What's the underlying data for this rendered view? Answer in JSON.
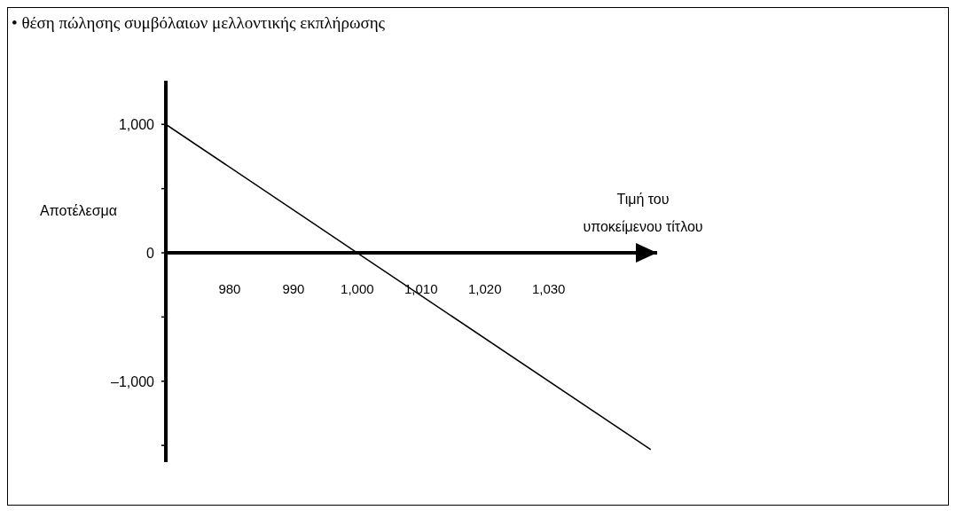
{
  "chart_data": {
    "type": "line",
    "title": "• θέση πώλησης συμβόλαιων μελλοντικής εκπλήρωσης",
    "xlabel": "Τιμή του υποκείμενου τίτλου",
    "ylabel": "Αποτέλεσμα",
    "x": [
      970,
      1000,
      1046
    ],
    "values": [
      1000,
      0,
      -1533
    ],
    "color": "#000000",
    "xlim": [
      970,
      1047
    ],
    "ylim": [
      -1630,
      1340
    ],
    "xticks": [
      980,
      990,
      {
        "value": 1000,
        "label": "1,000"
      },
      {
        "value": 1010,
        "label": "1,010"
      },
      {
        "value": 1020,
        "label": "1,020"
      },
      {
        "value": 1030,
        "label": "1,030"
      }
    ],
    "yticks": [
      {
        "value": 1000,
        "label": "1,000"
      },
      {
        "value": 500,
        "label": null
      },
      0,
      {
        "value": -500,
        "label": null
      },
      {
        "value": -1000,
        "label": "–1,000"
      },
      {
        "value": -1500,
        "label": null
      }
    ],
    "grid": false,
    "legend": false
  }
}
